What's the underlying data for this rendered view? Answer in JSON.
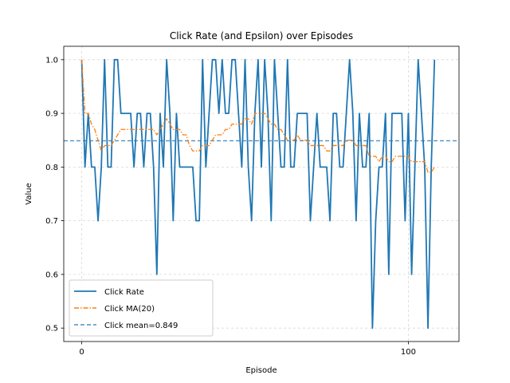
{
  "chart_data": {
    "type": "line",
    "title": "Click Rate (and Epsilon) over Episodes",
    "xlabel": "Episode",
    "ylabel": "Value",
    "xlim": [
      -5.5,
      115.5
    ],
    "ylim": [
      0.475,
      1.025
    ],
    "x_ticks": [
      0,
      100
    ],
    "y_ticks": [
      0.5,
      0.6,
      0.7,
      0.8,
      0.9,
      1.0
    ],
    "x_tick_labels": [
      "0",
      "100"
    ],
    "y_tick_labels": [
      "0.5",
      "0.6",
      "0.7",
      "0.8",
      "0.9",
      "1.0"
    ],
    "grid": true,
    "legend_position": "lower-left",
    "series": [
      {
        "name": "Click Rate",
        "color": "#1f77b4",
        "style": "solid",
        "values": [
          1.0,
          0.8,
          0.9,
          0.8,
          0.8,
          0.7,
          0.8,
          1.0,
          0.8,
          0.8,
          1.0,
          1.0,
          0.9,
          0.9,
          0.9,
          0.9,
          0.8,
          0.9,
          0.9,
          0.8,
          0.9,
          0.9,
          0.8,
          0.6,
          0.9,
          0.8,
          1.0,
          0.9,
          0.7,
          0.9,
          0.8,
          0.8,
          0.8,
          0.8,
          0.8,
          0.7,
          0.7,
          1.0,
          0.8,
          0.9,
          1.0,
          1.0,
          0.9,
          1.0,
          0.9,
          0.9,
          1.0,
          1.0,
          0.9,
          0.8,
          1.0,
          0.8,
          0.7,
          0.9,
          1.0,
          0.8,
          1.0,
          0.9,
          0.7,
          1.0,
          0.9,
          0.8,
          0.8,
          1.0,
          0.8,
          0.8,
          0.9,
          0.9,
          0.9,
          0.9,
          0.7,
          0.8,
          0.9,
          0.8,
          0.8,
          0.8,
          0.7,
          0.9,
          0.9,
          0.8,
          0.8,
          0.9,
          1.0,
          0.9,
          0.7,
          0.9,
          0.8,
          0.8,
          0.9,
          0.5,
          0.7,
          0.8,
          0.8,
          0.9,
          0.6,
          0.9,
          0.9,
          0.9,
          0.9,
          0.7,
          0.9,
          0.6,
          0.8,
          1.0,
          0.9,
          0.8,
          0.5,
          0.8,
          1.0
        ]
      },
      {
        "name": "Click MA(20)",
        "color": "#ff7f0e",
        "style": "dashdot",
        "values": [
          1.0,
          0.9,
          0.9,
          0.88,
          0.87,
          0.85,
          0.83,
          0.84,
          0.84,
          0.84,
          0.85,
          0.86,
          0.87,
          0.87,
          0.87,
          0.87,
          0.87,
          0.87,
          0.87,
          0.87,
          0.87,
          0.87,
          0.87,
          0.86,
          0.87,
          0.88,
          0.89,
          0.88,
          0.87,
          0.87,
          0.87,
          0.86,
          0.86,
          0.84,
          0.83,
          0.83,
          0.83,
          0.84,
          0.84,
          0.84,
          0.85,
          0.86,
          0.86,
          0.86,
          0.87,
          0.87,
          0.88,
          0.88,
          0.88,
          0.88,
          0.89,
          0.89,
          0.88,
          0.9,
          0.9,
          0.9,
          0.9,
          0.89,
          0.88,
          0.88,
          0.87,
          0.87,
          0.86,
          0.85,
          0.85,
          0.85,
          0.86,
          0.85,
          0.85,
          0.85,
          0.84,
          0.84,
          0.84,
          0.84,
          0.84,
          0.83,
          0.83,
          0.84,
          0.84,
          0.84,
          0.84,
          0.85,
          0.85,
          0.85,
          0.84,
          0.84,
          0.84,
          0.84,
          0.82,
          0.82,
          0.82,
          0.81,
          0.82,
          0.82,
          0.81,
          0.81,
          0.82,
          0.82,
          0.82,
          0.82,
          0.82,
          0.81,
          0.81,
          0.81,
          0.81,
          0.81,
          0.79,
          0.79,
          0.8
        ]
      }
    ],
    "hline": {
      "name": "Click mean=0.849",
      "value": 0.849,
      "color": "#1f77b4",
      "style": "dashed"
    }
  }
}
